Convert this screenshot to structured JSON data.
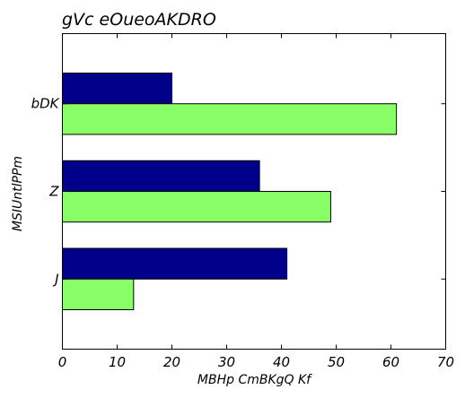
{
  "chart_data": {
    "type": "bar",
    "orientation": "horizontal",
    "title": "gVc eOueoAKDRO",
    "xlabel": "MBHp CmBKgQ Kf",
    "ylabel": "MSIUntlPPm",
    "categories": [
      "J",
      "Z",
      "bDK"
    ],
    "series": [
      {
        "values": [
          41,
          36,
          20
        ],
        "color": "#00008b"
      },
      {
        "values": [
          13,
          49,
          61
        ],
        "color": "#88ff66"
      }
    ],
    "xlim": [
      0,
      70
    ],
    "xticks": [
      0,
      10,
      20,
      30,
      40,
      50,
      60,
      70
    ],
    "grid": false,
    "legend": "none"
  }
}
